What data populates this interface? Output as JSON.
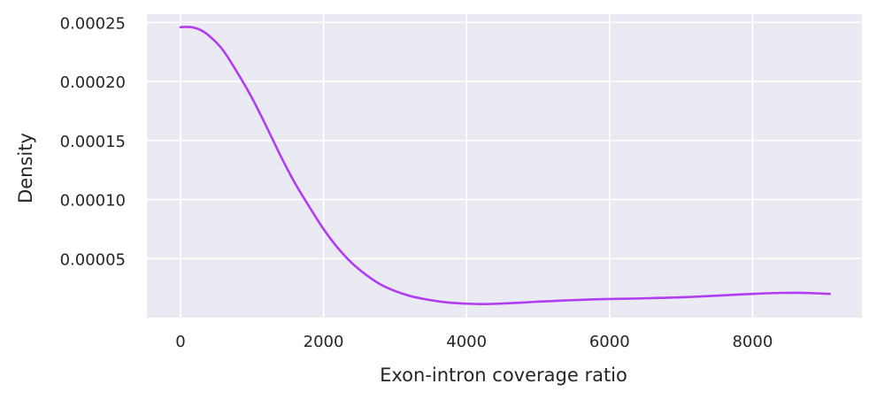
{
  "chart_data": {
    "type": "line",
    "xlabel": "Exon-intron coverage ratio",
    "ylabel": "Density",
    "xlim": [
      -470,
      9530
    ],
    "ylim": [
      0.0,
      0.000257
    ],
    "xticks": [
      0,
      2000,
      4000,
      6000,
      8000
    ],
    "xtick_labels": [
      "0",
      "2000",
      "4000",
      "6000",
      "8000"
    ],
    "yticks": [
      5e-05,
      0.0001,
      0.00015,
      0.0002,
      0.00025
    ],
    "ytick_labels": [
      "0.00005",
      "0.00010",
      "0.00015",
      "0.00020",
      "0.00025"
    ],
    "grid": true,
    "background_color": "#eaeaf2",
    "line_color": "#b13cf0",
    "series": [
      {
        "x": [
          0,
          150,
          300,
          450,
          600,
          800,
          1000,
          1200,
          1400,
          1600,
          1800,
          2000,
          2200,
          2400,
          2600,
          2800,
          3000,
          3200,
          3400,
          3600,
          3800,
          4000,
          4200,
          4400,
          4600,
          4800,
          5000,
          5200,
          5400,
          5600,
          5800,
          6000,
          6200,
          6400,
          6600,
          6800,
          7000,
          7200,
          7400,
          7600,
          7800,
          8000,
          8200,
          8400,
          8600,
          8800,
          9000,
          9080
        ],
        "y": [
          0.000246,
          0.000246,
          0.000243,
          0.000236,
          0.000226,
          0.000207,
          0.000186,
          0.000162,
          0.000137,
          0.000114,
          9.4e-05,
          7.5e-05,
          5.9e-05,
          4.6e-05,
          3.6e-05,
          2.8e-05,
          2.25e-05,
          1.85e-05,
          1.58e-05,
          1.38e-05,
          1.25e-05,
          1.18e-05,
          1.15e-05,
          1.17e-05,
          1.22e-05,
          1.28e-05,
          1.35e-05,
          1.4e-05,
          1.46e-05,
          1.5e-05,
          1.55e-05,
          1.58e-05,
          1.6e-05,
          1.62e-05,
          1.65e-05,
          1.68e-05,
          1.72e-05,
          1.77e-05,
          1.83e-05,
          1.89e-05,
          1.95e-05,
          2.01e-05,
          2.06e-05,
          2.09e-05,
          2.1e-05,
          2.08e-05,
          2.03e-05,
          2.01e-05
        ]
      }
    ]
  }
}
